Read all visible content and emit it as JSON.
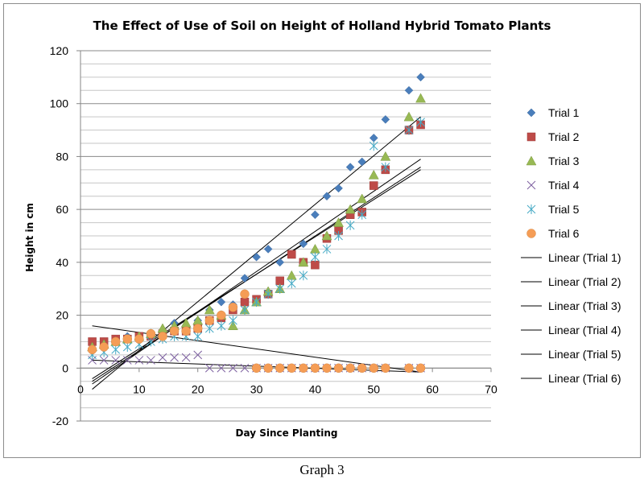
{
  "caption": "Graph 3",
  "chart_data": {
    "type": "scatter",
    "title": "The Effect of Use of Soil on Height of Holland Hybrid Tomato Plants",
    "xlabel": "Day Since Planting",
    "ylabel": "Height in cm",
    "xlim": [
      0,
      70
    ],
    "ylim": [
      -20,
      120
    ],
    "x_ticks": [
      0,
      10,
      20,
      30,
      40,
      50,
      60,
      70
    ],
    "y_ticks": [
      -20,
      0,
      20,
      40,
      60,
      80,
      100,
      120
    ],
    "grid": "horizontal",
    "legend_position": "right",
    "series": [
      {
        "name": "Trial 1",
        "marker": "diamond",
        "color": "#4a7ebb",
        "x": [
          2,
          4,
          6,
          8,
          10,
          12,
          14,
          16,
          18,
          20,
          22,
          24,
          26,
          28,
          30,
          32,
          34,
          36,
          38,
          40,
          42,
          44,
          46,
          48,
          50,
          52,
          56,
          58
        ],
        "y": [
          9,
          10,
          11,
          12,
          12,
          13,
          14,
          17,
          15,
          18,
          22,
          25,
          24,
          34,
          42,
          45,
          40,
          43,
          47,
          58,
          65,
          68,
          76,
          78,
          87,
          94,
          105,
          110
        ]
      },
      {
        "name": "Trial 2",
        "marker": "square",
        "color": "#be4b48",
        "x": [
          2,
          4,
          6,
          8,
          10,
          12,
          14,
          16,
          18,
          20,
          22,
          24,
          26,
          28,
          30,
          32,
          34,
          36,
          38,
          40,
          42,
          44,
          46,
          48,
          50,
          52,
          56,
          58
        ],
        "y": [
          10,
          10,
          11,
          11,
          12,
          12,
          13,
          14,
          14,
          15,
          18,
          19,
          22,
          25,
          26,
          28,
          33,
          43,
          40,
          39,
          49,
          52,
          58,
          59,
          69,
          75,
          90,
          92
        ]
      },
      {
        "name": "Trial 3",
        "marker": "triangle",
        "color": "#98b954",
        "x": [
          2,
          4,
          6,
          8,
          10,
          12,
          14,
          16,
          18,
          20,
          22,
          24,
          26,
          28,
          30,
          32,
          34,
          36,
          38,
          40,
          42,
          44,
          46,
          48,
          50,
          52,
          56,
          58
        ],
        "y": [
          8,
          9,
          10,
          11,
          12,
          13,
          15,
          16,
          17,
          18,
          22,
          20,
          16,
          22,
          25,
          29,
          30,
          35,
          40,
          45,
          50,
          55,
          60,
          64,
          73,
          80,
          95,
          102
        ]
      },
      {
        "name": "Trial 4",
        "marker": "x",
        "color": "#7d60a0",
        "x": [
          2,
          4,
          6,
          8,
          10,
          12,
          14,
          16,
          18,
          20,
          22,
          24,
          26,
          28,
          30,
          32,
          34,
          36,
          38,
          40,
          42,
          44,
          46,
          48,
          50,
          52,
          56,
          58
        ],
        "y": [
          3,
          3,
          3,
          3,
          3,
          3,
          4,
          4,
          4,
          5,
          0,
          0,
          0,
          0,
          0,
          0,
          0,
          0,
          0,
          0,
          0,
          0,
          0,
          0,
          0,
          0,
          0,
          0
        ]
      },
      {
        "name": "Trial 5",
        "marker": "asterisk",
        "color": "#46aac5",
        "x": [
          2,
          4,
          6,
          8,
          10,
          12,
          14,
          16,
          18,
          20,
          22,
          24,
          26,
          28,
          30,
          32,
          34,
          36,
          38,
          40,
          42,
          44,
          46,
          48,
          50,
          52,
          56,
          58
        ],
        "y": [
          5,
          6,
          7,
          8,
          9,
          10,
          11,
          12,
          12,
          12,
          15,
          16,
          18,
          22,
          25,
          28,
          30,
          32,
          35,
          42,
          45,
          50,
          54,
          58,
          84,
          76,
          90,
          93
        ]
      },
      {
        "name": "Trial 6",
        "marker": "circle",
        "color": "#f59d56",
        "x": [
          2,
          4,
          6,
          8,
          10,
          12,
          14,
          16,
          18,
          20,
          22,
          24,
          26,
          28,
          30,
          32,
          34,
          36,
          38,
          40,
          42,
          44,
          46,
          48,
          50,
          52,
          56,
          58
        ],
        "y": [
          7,
          8,
          10,
          11,
          11,
          13,
          12,
          14,
          14,
          15,
          18,
          20,
          23,
          28,
          0,
          0,
          0,
          0,
          0,
          0,
          0,
          0,
          0,
          0,
          0,
          0,
          0,
          0
        ]
      }
    ],
    "trendlines": [
      {
        "name": "Linear (Trial 1)",
        "type": "linear",
        "of": "Trial 1",
        "x_range": [
          2,
          58
        ],
        "y_start": -8,
        "y_end": 95
      },
      {
        "name": "Linear (Trial 2)",
        "type": "linear",
        "of": "Trial 2",
        "x_range": [
          2,
          58
        ],
        "y_start": -4,
        "y_end": 75
      },
      {
        "name": "Linear (Trial 3)",
        "type": "linear",
        "of": "Trial 3",
        "x_range": [
          2,
          58
        ],
        "y_start": -6,
        "y_end": 79
      },
      {
        "name": "Linear (Trial 4)",
        "type": "linear",
        "of": "Trial 4",
        "x_range": [
          2,
          58
        ],
        "y_start": 3,
        "y_end": -1.5
      },
      {
        "name": "Linear (Trial 5)",
        "type": "linear",
        "of": "Trial 5",
        "x_range": [
          2,
          58
        ],
        "y_start": -5,
        "y_end": 76
      },
      {
        "name": "Linear (Trial 6)",
        "type": "linear",
        "of": "Trial 6",
        "x_range": [
          2,
          58
        ],
        "y_start": 16,
        "y_end": -1.5
      }
    ]
  }
}
